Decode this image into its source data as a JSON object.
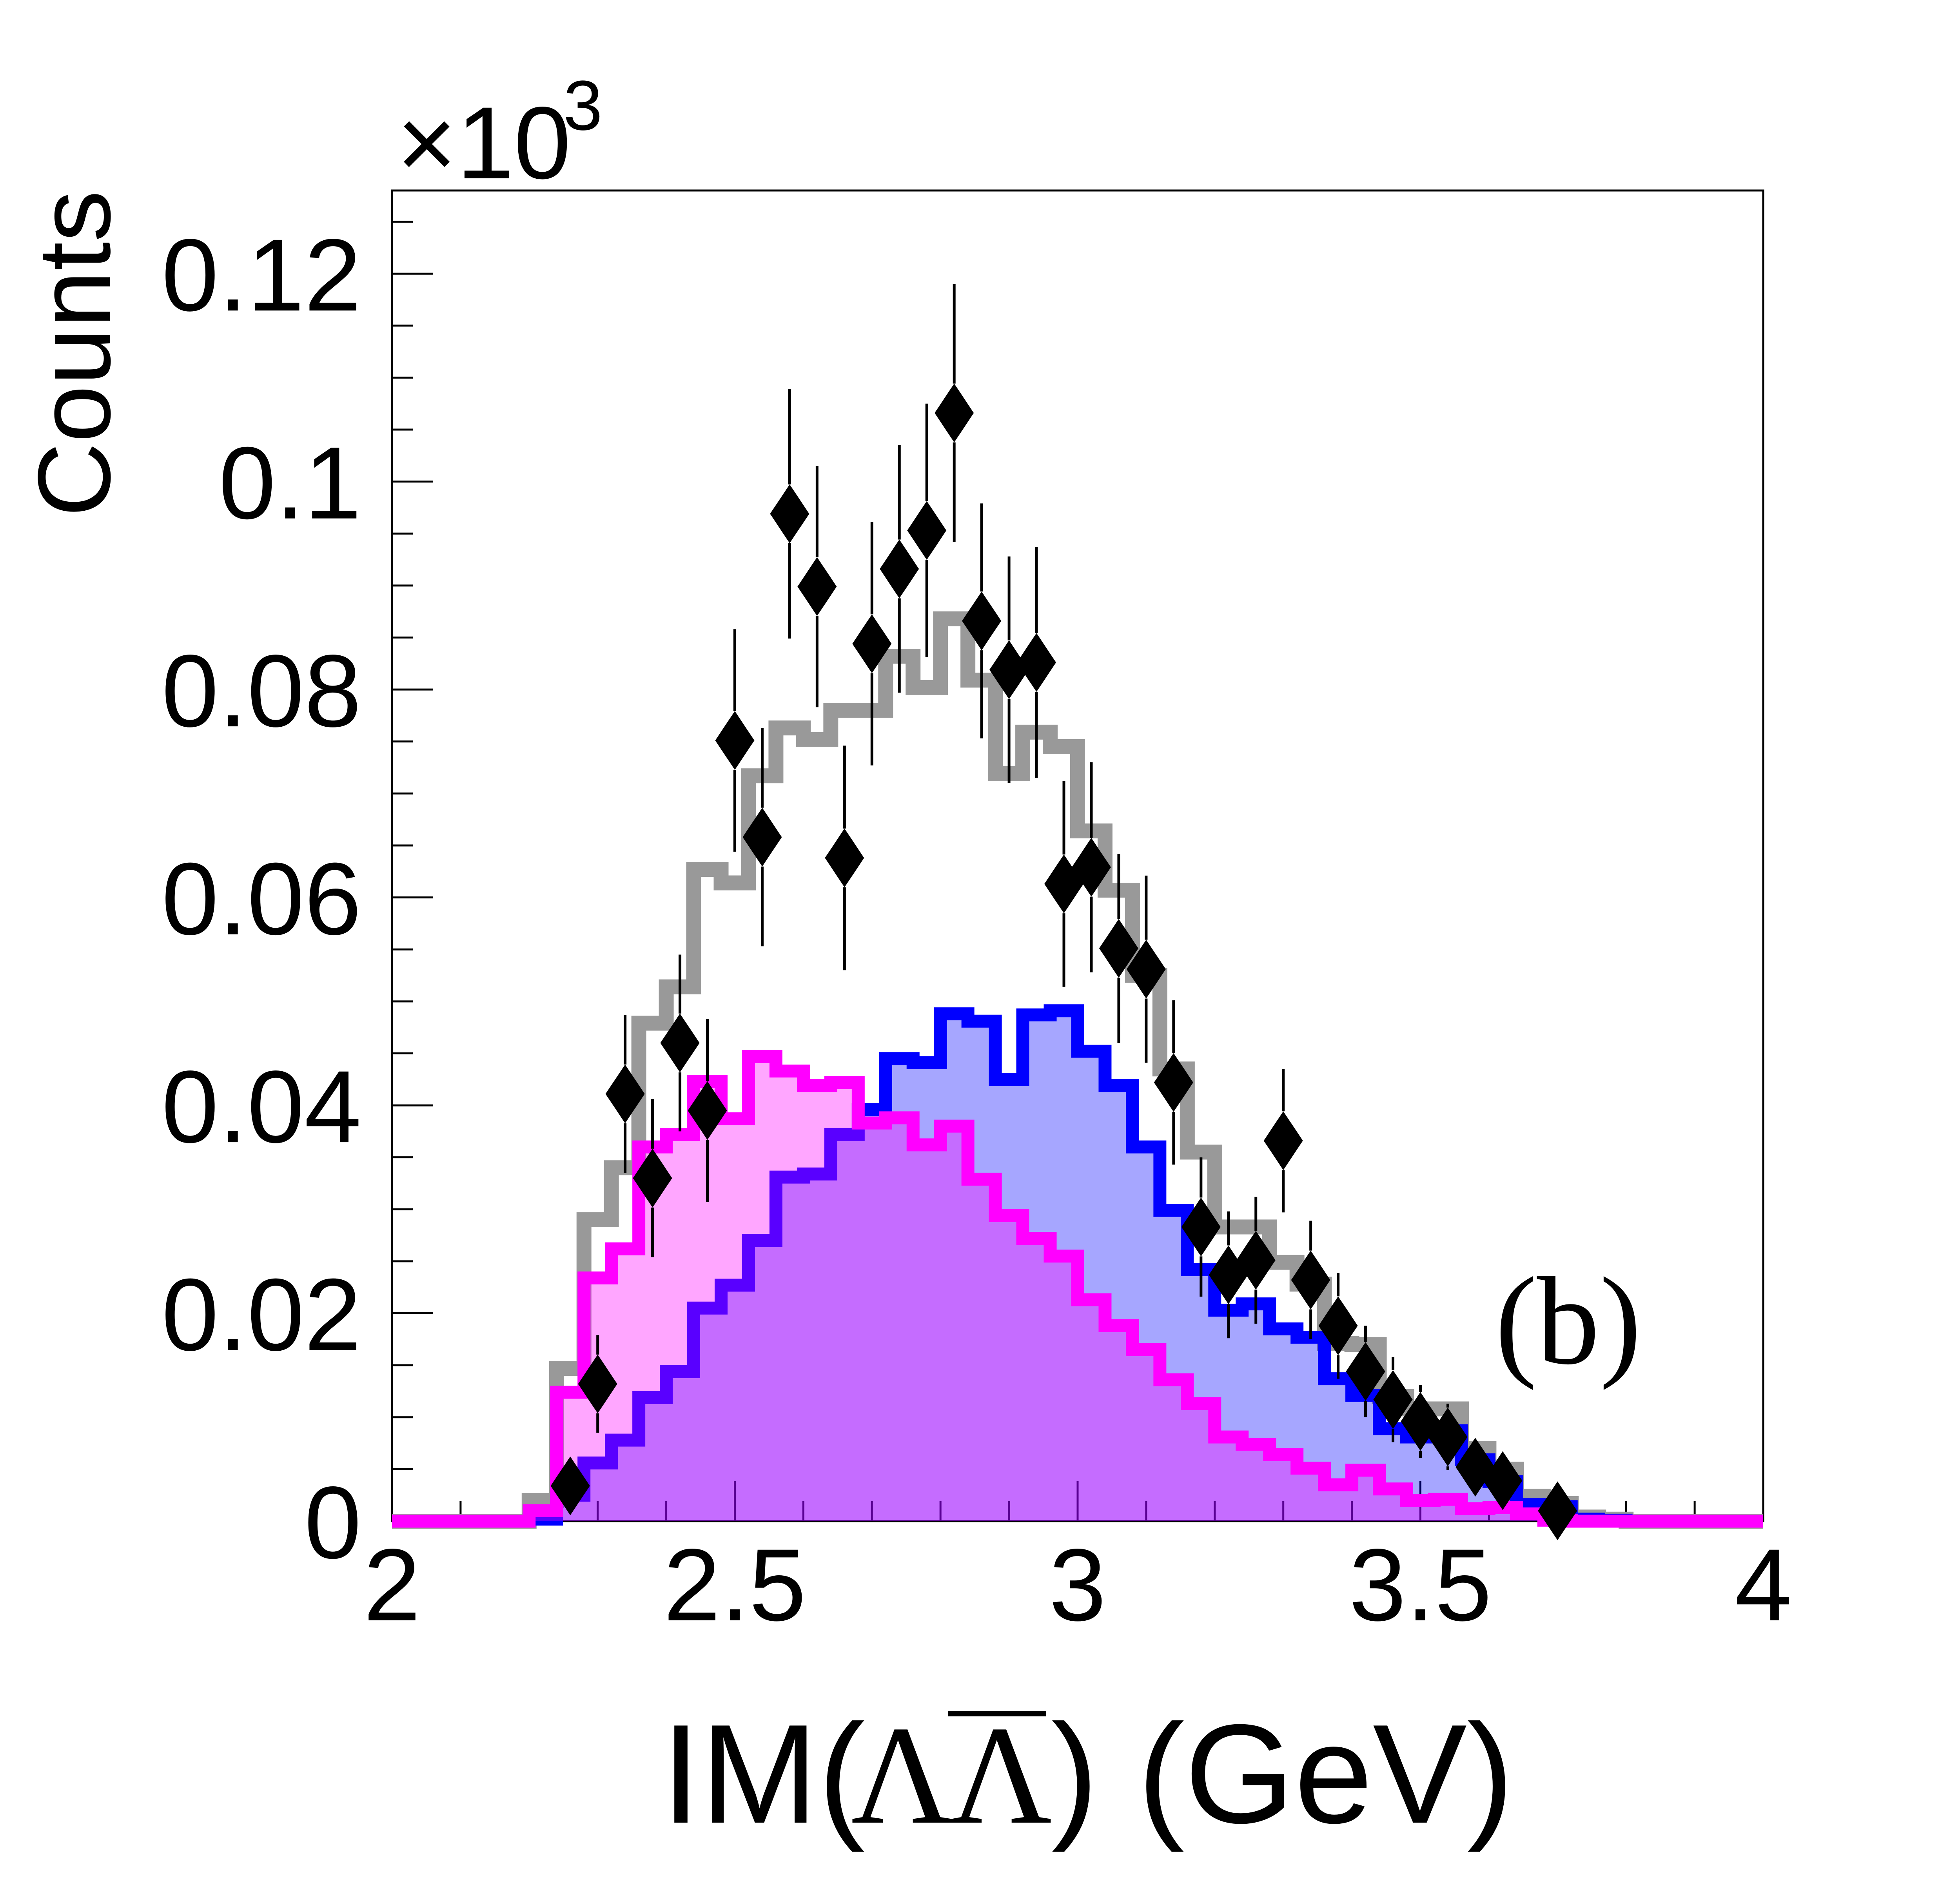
{
  "chart_data": {
    "type": "bar",
    "title": "",
    "panel_label": "(b)",
    "ylabel": "Counts",
    "y_multiplier": {
      "base": "×10",
      "exponent": "3"
    },
    "xlabel": {
      "prefix": "IM(",
      "particle": "Λ",
      "antiparticle": "Λ",
      "suffix": ") (GeV)"
    },
    "xlim": [
      2,
      4
    ],
    "ylim": [
      0,
      128
    ],
    "grid": false,
    "x_ticks": [
      {
        "value": 2,
        "label": "2"
      },
      {
        "value": 2.5,
        "label": "2.5"
      },
      {
        "value": 3,
        "label": "3"
      },
      {
        "value": 3.5,
        "label": "3.5"
      },
      {
        "value": 4,
        "label": "4"
      }
    ],
    "y_ticks": [
      {
        "value": 0,
        "label": "0"
      },
      {
        "value": 20,
        "label": "0.02"
      },
      {
        "value": 40,
        "label": "0.04"
      },
      {
        "value": 60,
        "label": "0.06"
      },
      {
        "value": 80,
        "label": "0.08"
      },
      {
        "value": 100,
        "label": "0.1"
      },
      {
        "value": 120,
        "label": "0.12"
      }
    ],
    "x_major_step": 0.5,
    "x_minor_step": 0.1,
    "y_major_step": 20,
    "y_minor_step": 5,
    "bin_start": 2.0,
    "bin_width": 0.04,
    "series": {
      "gray": {
        "line_color": "#999999",
        "fill_color": null,
        "fill_alpha": 0,
        "values": [
          0,
          0,
          0,
          0,
          0,
          2.0,
          14.7,
          29.0,
          34.0,
          47.9,
          51.4,
          62.7,
          61.4,
          71.7,
          76.3,
          75.2,
          78.0,
          78.0,
          83.2,
          80.2,
          86.8,
          80.9,
          71.9,
          75.9,
          74.5,
          66.4,
          60.7,
          52.5,
          43.5,
          35.5,
          28.3,
          28.3,
          24.9,
          22.8,
          17.1,
          17.0,
          12.0,
          10.8,
          10.8,
          7.0,
          5.0,
          2.4,
          1.7,
          0.4,
          0.2,
          0,
          0,
          0,
          0,
          0
        ]
      },
      "blue": {
        "line_color": "#0000ff",
        "fill_color": "#0000ff",
        "fill_alpha": 0.35,
        "values": [
          0,
          0,
          0,
          0,
          0,
          0.2,
          2.5,
          5.6,
          7.8,
          11.9,
          14.4,
          20.5,
          22.7,
          27.0,
          33.1,
          33.4,
          37.2,
          39.6,
          44.5,
          44.1,
          48.8,
          48.1,
          42.5,
          48.7,
          49.1,
          45.2,
          41.9,
          36.0,
          29.9,
          24.2,
          20.3,
          20.9,
          18.5,
          17.7,
          13.7,
          12.1,
          8.9,
          8.1,
          8.7,
          5.9,
          3.8,
          1.6,
          1.4,
          0.2,
          0.1,
          0,
          0,
          0,
          0,
          0
        ]
      },
      "magenta": {
        "line_color": "#ff00ff",
        "fill_color": "#ff00ff",
        "fill_alpha": 0.35,
        "values": [
          0,
          0,
          0,
          0,
          0,
          1.0,
          12.4,
          23.4,
          26.2,
          36.0,
          37.2,
          42.3,
          38.7,
          44.7,
          43.3,
          41.9,
          42.2,
          38.3,
          38.8,
          36.2,
          38.0,
          32.9,
          29.4,
          27.2,
          25.5,
          21.3,
          18.8,
          16.5,
          13.6,
          11.3,
          8.1,
          7.4,
          6.4,
          5.1,
          3.5,
          4.9,
          3.1,
          2.0,
          2.1,
          1.2,
          1.3,
          0.7,
          0.1,
          0,
          0,
          0,
          0,
          0,
          0,
          0
        ]
      }
    },
    "data_points": {
      "color": "#000000",
      "x": [
        2.26,
        2.3,
        2.34,
        2.38,
        2.42,
        2.46,
        2.5,
        2.54,
        2.58,
        2.62,
        2.66,
        2.7,
        2.74,
        2.78,
        2.82,
        2.86,
        2.9,
        2.94,
        2.98,
        3.02,
        3.06,
        3.1,
        3.14,
        3.18,
        3.22,
        3.26,
        3.3,
        3.34,
        3.38,
        3.42,
        3.46,
        3.5,
        3.54,
        3.58,
        3.62,
        3.7
      ],
      "y": [
        3.4,
        13.2,
        41.1,
        33.0,
        46.0,
        39.5,
        75.1,
        65.8,
        96.9,
        89.9,
        63.8,
        84.4,
        91.6,
        95.3,
        106.6,
        86.6,
        81.9,
        82.6,
        61.3,
        62.9,
        55.1,
        53.1,
        42.2,
        28.3,
        23.7,
        25.1,
        36.6,
        23.2,
        18.8,
        14.4,
        11.7,
        9.6,
        8.1,
        5.2,
        3.9,
        1.0
      ],
      "yerr": [
        2.2,
        4.7,
        7.6,
        7.6,
        8.5,
        8.8,
        10.7,
        10.5,
        12.0,
        11.6,
        10.8,
        11.7,
        11.9,
        12.2,
        12.4,
        11.3,
        10.9,
        11.1,
        9.9,
        10.1,
        9.1,
        9.0,
        7.9,
        6.7,
        6.1,
        6.1,
        6.9,
        5.7,
        5.1,
        4.4,
        4.1,
        3.5,
        3.2,
        2.3,
        2.0,
        1.0
      ]
    }
  }
}
